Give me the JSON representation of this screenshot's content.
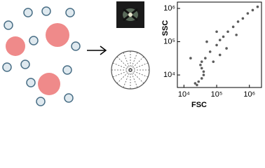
{
  "chart_data": {
    "type": "scatter",
    "x_label": "FSC",
    "y_label": "SSC",
    "log_x": true,
    "log_y": true,
    "color": "#333333",
    "xlim": [
      6300,
      2340000
    ],
    "ylim": [
      4200,
      1550000
    ],
    "xticks": [
      {
        "value": 10000,
        "label": "10⁴"
      },
      {
        "value": 100000,
        "label": "10⁵"
      },
      {
        "value": 1000000,
        "label": "10⁶"
      }
    ],
    "yticks": [
      {
        "value": 10000,
        "label": "10⁴"
      },
      {
        "value": 100000,
        "label": "10⁵"
      },
      {
        "value": 1000000,
        "label": "10⁶"
      }
    ],
    "x": [
      22000,
      28000,
      35000,
      40000,
      40000,
      35000,
      32000,
      35000,
      45000,
      63000,
      100000,
      126000,
      160000,
      220000,
      320000,
      450000,
      630000,
      890000,
      1260000,
      1780000,
      16000,
      79000,
      200000,
      100000,
      50000,
      400000,
      25000,
      126000
    ],
    "values": [
      5600,
      6300,
      7900,
      10000,
      12600,
      16000,
      20000,
      25000,
      32000,
      50000,
      79000,
      112000,
      141000,
      200000,
      280000,
      400000,
      500000,
      710000,
      890000,
      1120000,
      32000,
      25000,
      63000,
      200000,
      100000,
      160000,
      5000,
      40000
    ]
  }
}
